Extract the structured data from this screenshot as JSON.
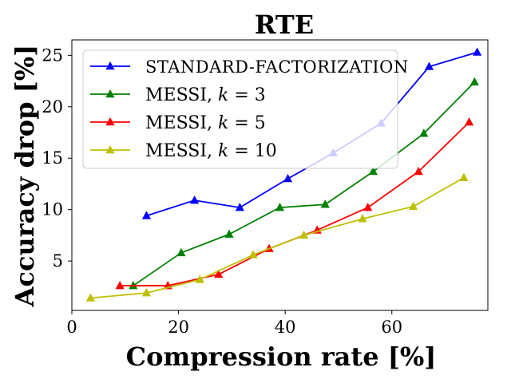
{
  "chart_data": {
    "type": "line",
    "title": "RTE",
    "xlabel": "Compression rate [%]",
    "ylabel": "Accuracy drop [%]",
    "xlim": [
      0,
      78
    ],
    "ylim": [
      0.2,
      26.5
    ],
    "xticks": [
      0,
      20,
      40,
      60
    ],
    "yticks": [
      5,
      10,
      15,
      20,
      25
    ],
    "grid": false,
    "legend_position": "top-left",
    "series": [
      {
        "name": "STANDARD-FACTORIZATION",
        "color": "#0000ff",
        "marker": "triangle",
        "x": [
          14,
          23,
          31.5,
          40.5,
          49,
          58,
          67,
          76
        ],
        "y": [
          9.4,
          10.9,
          10.2,
          13.0,
          15.5,
          18.4,
          23.9,
          25.3
        ]
      },
      {
        "name": "MESSI, k = 3",
        "color": "#008000",
        "marker": "triangle",
        "x": [
          11.5,
          20.5,
          29.5,
          39,
          47.5,
          56.5,
          66,
          75.5
        ],
        "y": [
          2.6,
          5.8,
          7.6,
          10.2,
          10.5,
          13.7,
          17.4,
          22.4
        ]
      },
      {
        "name": "MESSI, k = 5",
        "color": "#ff0000",
        "marker": "triangle",
        "x": [
          9,
          18,
          27.5,
          37,
          46,
          55.5,
          65,
          74.5
        ],
        "y": [
          2.6,
          2.6,
          3.7,
          6.2,
          8.0,
          10.2,
          13.7,
          18.5
        ]
      },
      {
        "name": "MESSI, k = 10",
        "color": "#bfbf00",
        "marker": "triangle",
        "x": [
          3.5,
          14,
          24,
          34,
          43.5,
          54.5,
          64,
          73.5
        ],
        "y": [
          1.4,
          1.9,
          3.2,
          5.6,
          7.5,
          9.1,
          10.3,
          13.1
        ]
      }
    ]
  },
  "legend": {
    "items": [
      {
        "prefix": "STANDARD-FACTORIZATION",
        "var": "",
        "value": ""
      },
      {
        "prefix": "MESSI, ",
        "var": "k",
        "value": " = 3"
      },
      {
        "prefix": "MESSI, ",
        "var": "k",
        "value": " = 5"
      },
      {
        "prefix": "MESSI, ",
        "var": "k",
        "value": " = 10"
      }
    ]
  }
}
